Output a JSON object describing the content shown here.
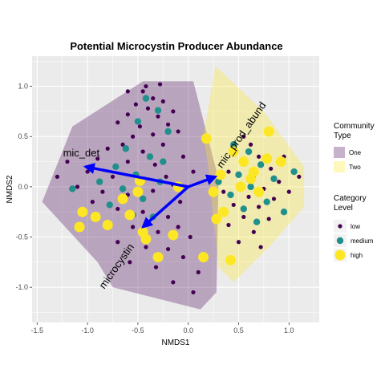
{
  "chart_data": {
    "type": "scatter",
    "title": "Potential Microcystin Producer Abundance",
    "xlabel": "NMDS1",
    "ylabel": "NMDS2",
    "xlim": [
      -1.55,
      1.3
    ],
    "ylim": [
      -1.35,
      1.3
    ],
    "x_ticks": [
      -1.5,
      -1.0,
      -0.5,
      0.0,
      0.5,
      1.0
    ],
    "x_tick_labels": [
      "-1.5",
      "-1.0",
      "-0.5",
      "0.0",
      "0.5",
      "1.0"
    ],
    "y_ticks": [
      -1.0,
      -0.5,
      0.0,
      0.5,
      1.0
    ],
    "y_tick_labels": [
      "-1.0",
      "-0.5",
      "0.0",
      "0.5",
      "1.0"
    ],
    "grid": true,
    "legend_placement": "right",
    "hulls": [
      {
        "name": "One",
        "color": "#440154",
        "opacity": 0.3,
        "points": [
          [
            -1.45,
            -0.15
          ],
          [
            -1.15,
            0.6
          ],
          [
            -0.45,
            1.05
          ],
          [
            0.05,
            1.05
          ],
          [
            0.3,
            0.08
          ],
          [
            0.28,
            -1.05
          ],
          [
            0.12,
            -1.22
          ],
          [
            -0.75,
            -1.0
          ],
          [
            -0.9,
            -0.75
          ]
        ]
      },
      {
        "name": "Two",
        "color": "#FDE725",
        "opacity": 0.3,
        "points": [
          [
            0.27,
            1.2
          ],
          [
            0.75,
            0.75
          ],
          [
            1.15,
            0.2
          ],
          [
            1.15,
            -0.2
          ],
          [
            0.8,
            -0.6
          ],
          [
            0.45,
            -0.95
          ],
          [
            0.3,
            -0.8
          ],
          [
            0.2,
            0.2
          ],
          [
            0.15,
            0.5
          ]
        ]
      }
    ],
    "series": [
      {
        "name": "low",
        "color": "#440154",
        "radius": 2.6,
        "points": [
          [
            -0.42,
            1.0
          ],
          [
            -0.45,
            0.95
          ],
          [
            -0.28,
            1.02
          ],
          [
            -0.35,
            0.88
          ],
          [
            -0.52,
            0.82
          ],
          [
            -0.4,
            0.78
          ],
          [
            -0.6,
            0.72
          ],
          [
            -0.3,
            0.7
          ],
          [
            -0.7,
            0.64
          ],
          [
            -0.48,
            0.6
          ],
          [
            -0.2,
            0.62
          ],
          [
            -0.55,
            0.5
          ],
          [
            -0.35,
            0.52
          ],
          [
            -0.65,
            0.42
          ],
          [
            -0.8,
            0.38
          ],
          [
            -0.25,
            0.42
          ],
          [
            -0.45,
            0.35
          ],
          [
            -0.9,
            0.28
          ],
          [
            -0.6,
            0.25
          ],
          [
            -0.33,
            0.22
          ],
          [
            -1.0,
            0.15
          ],
          [
            -0.75,
            0.1
          ],
          [
            -0.5,
            0.08
          ],
          [
            -0.22,
            0.1
          ],
          [
            -1.1,
            0.0
          ],
          [
            -0.85,
            -0.05
          ],
          [
            -0.6,
            -0.08
          ],
          [
            -0.35,
            -0.04
          ],
          [
            -0.15,
            0.02
          ],
          [
            -0.95,
            -0.15
          ],
          [
            -0.7,
            -0.22
          ],
          [
            -0.45,
            -0.25
          ],
          [
            -0.2,
            -0.3
          ],
          [
            -0.8,
            -0.35
          ],
          [
            -0.55,
            -0.4
          ],
          [
            -0.3,
            -0.45
          ],
          [
            -0.1,
            -0.4
          ],
          [
            -0.7,
            -0.55
          ],
          [
            -0.42,
            -0.6
          ],
          [
            -0.2,
            -0.62
          ],
          [
            -0.58,
            -0.75
          ],
          [
            -0.32,
            -0.8
          ],
          [
            -0.05,
            -0.7
          ],
          [
            -0.15,
            -0.95
          ],
          [
            0.05,
            -1.05
          ],
          [
            0.1,
            -0.85
          ],
          [
            -0.1,
            0.55
          ],
          [
            -0.05,
            0.3
          ],
          [
            0.05,
            0.15
          ],
          [
            -0.08,
            -0.15
          ],
          [
            0.02,
            -0.5
          ],
          [
            -0.6,
            0.95
          ],
          [
            -0.25,
            0.85
          ],
          [
            -0.15,
            0.75
          ],
          [
            -1.2,
            0.25
          ],
          [
            -1.3,
            0.1
          ],
          [
            0.55,
            0.5
          ],
          [
            0.62,
            0.42
          ],
          [
            0.48,
            0.35
          ],
          [
            0.7,
            0.3
          ],
          [
            0.55,
            0.22
          ],
          [
            0.82,
            0.18
          ],
          [
            0.4,
            0.15
          ],
          [
            0.65,
            0.1
          ],
          [
            0.9,
            0.05
          ],
          [
            0.5,
            0.02
          ],
          [
            0.75,
            -0.02
          ],
          [
            0.35,
            -0.05
          ],
          [
            0.6,
            -0.1
          ],
          [
            0.85,
            -0.12
          ],
          [
            1.0,
            -0.05
          ],
          [
            0.45,
            -0.18
          ],
          [
            0.7,
            -0.2
          ],
          [
            0.55,
            -0.3
          ],
          [
            0.8,
            -0.32
          ],
          [
            0.4,
            -0.38
          ],
          [
            0.65,
            -0.45
          ],
          [
            0.5,
            -0.55
          ],
          [
            0.72,
            -0.6
          ],
          [
            1.1,
            0.1
          ],
          [
            0.95,
            0.3
          ]
        ]
      },
      {
        "name": "medium",
        "color": "#21908C",
        "radius": 4.2,
        "points": [
          [
            -0.42,
            0.88
          ],
          [
            -0.3,
            0.76
          ],
          [
            -0.5,
            0.65
          ],
          [
            -0.2,
            0.55
          ],
          [
            -0.62,
            0.38
          ],
          [
            -0.38,
            0.3
          ],
          [
            -0.72,
            0.2
          ],
          [
            -0.52,
            0.12
          ],
          [
            -0.28,
            0.05
          ],
          [
            -0.88,
            0.05
          ],
          [
            -0.65,
            -0.02
          ],
          [
            -0.45,
            -0.12
          ],
          [
            -0.78,
            -0.18
          ],
          [
            -0.55,
            -0.28
          ],
          [
            -0.35,
            -0.3
          ],
          [
            -0.25,
            0.25
          ],
          [
            -1.15,
            -0.02
          ],
          [
            0.45,
            0.42
          ],
          [
            0.6,
            0.35
          ],
          [
            0.72,
            0.22
          ],
          [
            0.5,
            0.12
          ],
          [
            0.85,
            0.08
          ],
          [
            0.62,
            0.0
          ],
          [
            0.42,
            -0.08
          ],
          [
            0.78,
            -0.15
          ],
          [
            0.55,
            -0.22
          ],
          [
            0.68,
            -0.35
          ],
          [
            0.3,
            0.05
          ],
          [
            0.95,
            -0.25
          ],
          [
            1.05,
            0.15
          ]
        ]
      },
      {
        "name": "high",
        "color": "#FDE725",
        "radius": 6.5,
        "points": [
          [
            -1.05,
            -0.25
          ],
          [
            -0.92,
            -0.3
          ],
          [
            -0.8,
            -0.38
          ],
          [
            -1.08,
            -0.4
          ],
          [
            -0.58,
            -0.28
          ],
          [
            -0.45,
            -0.45
          ],
          [
            -0.5,
            -0.05
          ],
          [
            -0.65,
            -0.12
          ],
          [
            -0.42,
            -0.52
          ],
          [
            -0.15,
            -0.48
          ],
          [
            -0.3,
            -0.7
          ],
          [
            0.15,
            -0.7
          ],
          [
            0.28,
            -0.32
          ],
          [
            0.35,
            -0.25
          ],
          [
            0.42,
            -0.73
          ],
          [
            0.18,
            0.48
          ],
          [
            0.55,
            0.25
          ],
          [
            0.65,
            0.15
          ],
          [
            0.78,
            0.28
          ],
          [
            0.8,
            0.55
          ],
          [
            0.92,
            0.25
          ],
          [
            0.45,
            0.35
          ],
          [
            0.32,
            0.12
          ],
          [
            0.62,
            0.08
          ],
          [
            0.52,
            0.0
          ],
          [
            -0.48,
            0.06
          ],
          [
            -0.1,
            0.0
          ],
          [
            0.25,
            -0.05
          ],
          [
            0.7,
            -0.05
          ]
        ]
      }
    ],
    "vectors": [
      {
        "label": "mic_det",
        "x": -1.02,
        "y": 0.2
      },
      {
        "label": "mic_prod_abund",
        "x": 0.27,
        "y": 0.1
      },
      {
        "label": "microcystin",
        "x": -0.45,
        "y": -0.4
      }
    ],
    "vector_origin": [
      0.0,
      0.0
    ],
    "vector_color": "#0000FF",
    "panel_background": "#EBEBEB",
    "grid_color": "#FFFFFF"
  },
  "legend": {
    "community": {
      "title_line1": "Community",
      "title_line2": "Type",
      "items": [
        {
          "label": "One",
          "color": "#440154"
        },
        {
          "label": "Two",
          "color": "#FDE725"
        }
      ]
    },
    "category": {
      "title_line1": "Category",
      "title_line2": "Level",
      "items": [
        {
          "label": "low",
          "color": "#440154"
        },
        {
          "label": "medium",
          "color": "#21908C"
        },
        {
          "label": "high",
          "color": "#FDE725"
        }
      ]
    }
  }
}
